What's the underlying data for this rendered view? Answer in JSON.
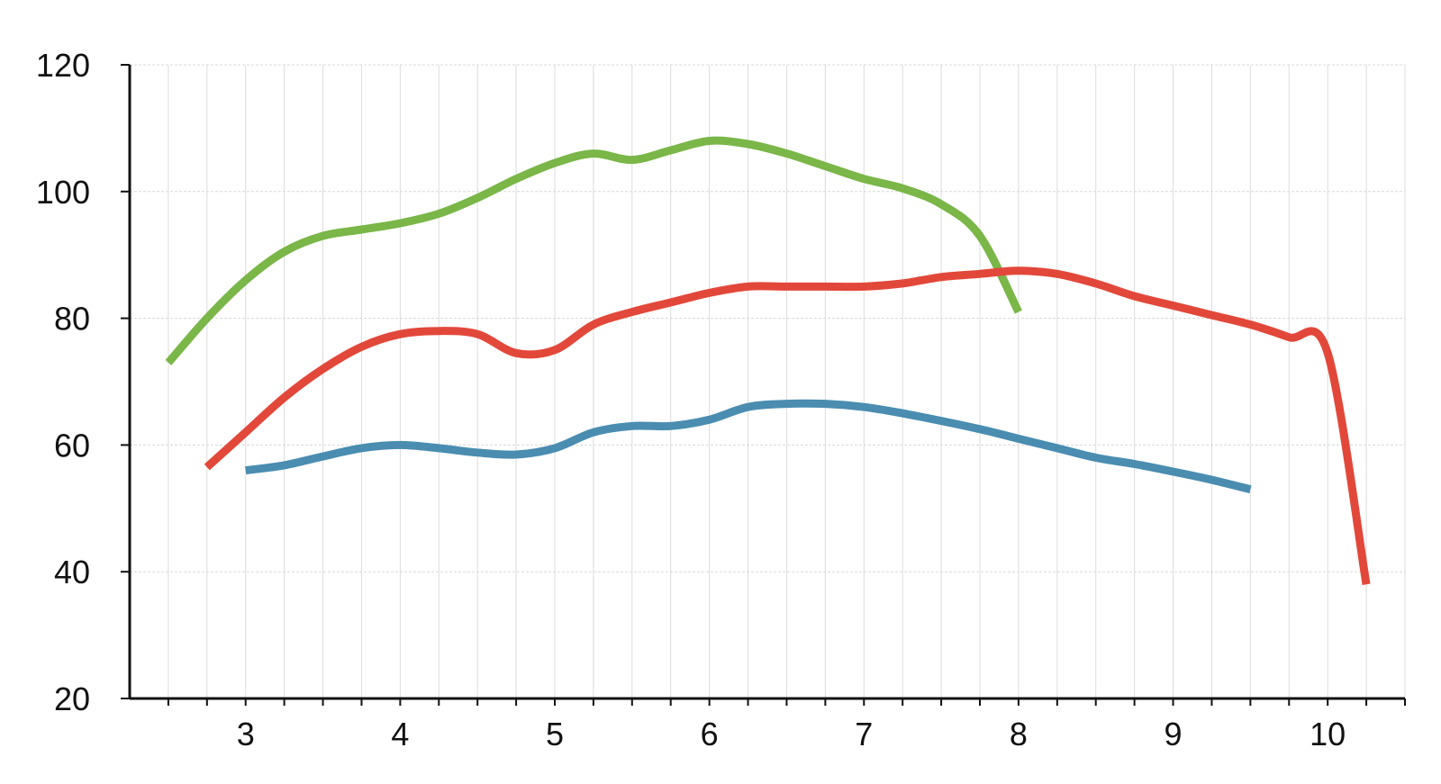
{
  "chart_data": {
    "type": "line",
    "title": "",
    "xlabel": "",
    "ylabel": "",
    "xlim": [
      2.25,
      10.5
    ],
    "ylim": [
      20,
      120
    ],
    "x_ticks": [
      "3",
      "4",
      "5",
      "6",
      "7",
      "8",
      "9",
      "10"
    ],
    "y_ticks": [
      "20",
      "40",
      "60",
      "80",
      "100",
      "120"
    ],
    "x_minor_step": 0.25,
    "grid": true,
    "legend": "none",
    "series": [
      {
        "color": "#7ab648",
        "x": [
          2.5,
          2.75,
          3,
          3.25,
          3.5,
          3.75,
          4,
          4.25,
          4.5,
          4.75,
          5,
          5.25,
          5.5,
          5.75,
          6,
          6.25,
          6.5,
          6.75,
          7,
          7.25,
          7.5,
          7.75,
          8
        ],
        "y": [
          73,
          80,
          86,
          90.5,
          93,
          94,
          95,
          96.5,
          99,
          102,
          104.5,
          106,
          105,
          106.5,
          108,
          107.5,
          106,
          104,
          102,
          100.5,
          98,
          93,
          81
        ]
      },
      {
        "color": "#e2483a",
        "x": [
          2.75,
          3,
          3.25,
          3.5,
          3.75,
          4,
          4.25,
          4.5,
          4.75,
          5,
          5.25,
          5.5,
          5.75,
          6,
          6.25,
          6.5,
          6.75,
          7,
          7.25,
          7.5,
          7.75,
          8,
          8.25,
          8.5,
          8.75,
          9,
          9.25,
          9.5,
          9.75,
          10,
          10.25
        ],
        "y": [
          56.5,
          62,
          67.5,
          72,
          75.5,
          77.5,
          78,
          77.5,
          74.5,
          75,
          79,
          81,
          82.5,
          84,
          85,
          85,
          85,
          85,
          85.5,
          86.5,
          87,
          87.5,
          87,
          85.5,
          83.5,
          82,
          80.5,
          79,
          77,
          74.5,
          38
        ]
      },
      {
        "color": "#4a8db0",
        "x": [
          3,
          3.25,
          3.5,
          3.75,
          4,
          4.25,
          4.5,
          4.75,
          5,
          5.25,
          5.5,
          5.75,
          6,
          6.25,
          6.5,
          6.75,
          7,
          7.25,
          7.5,
          7.75,
          8,
          8.25,
          8.5,
          8.75,
          9,
          9.25,
          9.5
        ],
        "y": [
          56,
          56.8,
          58.2,
          59.5,
          60,
          59.5,
          58.8,
          58.5,
          59.5,
          62,
          63,
          63,
          64,
          66,
          66.5,
          66.5,
          66,
          65,
          63.8,
          62.5,
          61,
          59.5,
          58,
          57,
          55.8,
          54.5,
          53
        ]
      }
    ]
  }
}
